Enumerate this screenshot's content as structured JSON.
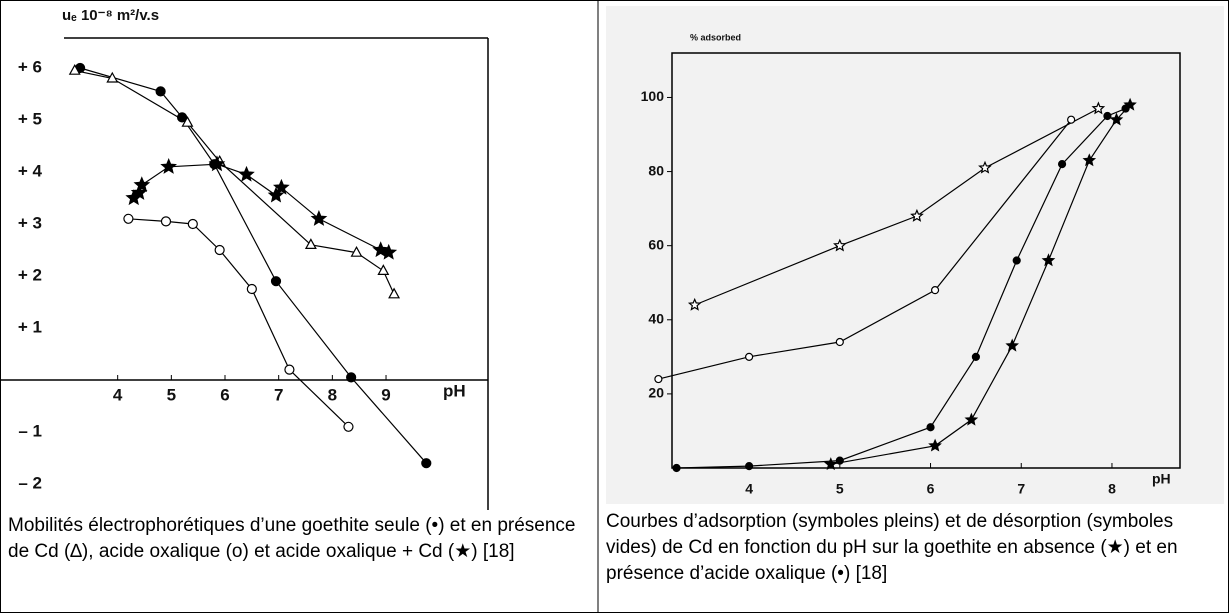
{
  "chart_data": [
    {
      "type": "line",
      "ylabel": "uₑ 10⁻⁸ m²/v.s",
      "xlabel": "pH",
      "xlim": [
        3,
        10.9
      ],
      "ylim": [
        -2.5,
        6.5
      ],
      "xticks": [
        4,
        5,
        6,
        7,
        8,
        9
      ],
      "yticks": [
        {
          "value": 6,
          "label": "+ 6"
        },
        {
          "value": 5,
          "label": "+ 5"
        },
        {
          "value": 4,
          "label": "+ 4"
        },
        {
          "value": 3,
          "label": "+ 3"
        },
        {
          "value": 2,
          "label": "+ 2"
        },
        {
          "value": 1,
          "label": "+ 1"
        },
        {
          "value": -1,
          "label": "– 1"
        },
        {
          "value": -2,
          "label": "– 2"
        }
      ],
      "series": [
        {
          "marker": "filled-circle",
          "color": "#000",
          "x": [
            3.3,
            4.8,
            5.2,
            5.8,
            6.95,
            8.35,
            9.75
          ],
          "values": [
            6.0,
            5.55,
            5.05,
            4.15,
            1.9,
            0.05,
            -1.6
          ]
        },
        {
          "marker": "open-triangle",
          "color": "#000",
          "x": [
            3.2,
            3.9,
            5.3,
            5.9,
            7.6,
            8.45,
            8.95,
            9.15
          ],
          "values": [
            5.95,
            5.8,
            4.95,
            4.2,
            2.6,
            2.45,
            2.1,
            1.65
          ]
        },
        {
          "marker": "open-circle",
          "color": "#000",
          "x": [
            4.2,
            4.9,
            5.4,
            5.9,
            6.5,
            7.2,
            8.3
          ],
          "values": [
            3.1,
            3.05,
            3.0,
            2.5,
            1.75,
            0.2,
            -0.9
          ]
        },
        {
          "marker": "filled-star",
          "color": "#000",
          "x": [
            4.3,
            4.4,
            4.45,
            4.95,
            5.85,
            6.4,
            6.95,
            7.05,
            7.75,
            8.9,
            9.05
          ],
          "values": [
            3.5,
            3.6,
            3.75,
            4.1,
            4.15,
            3.95,
            3.55,
            3.7,
            3.1,
            2.5,
            2.45
          ]
        }
      ]
    },
    {
      "type": "line",
      "ylabel": "% adsorbed",
      "xlabel": "pH",
      "xlim": [
        3.15,
        8.75
      ],
      "ylim": [
        0,
        112
      ],
      "xticks": [
        4,
        5,
        6,
        7,
        8
      ],
      "yticks": [
        20,
        40,
        60,
        80,
        100
      ],
      "series": [
        {
          "marker": "open-star",
          "color": "#000",
          "x": [
            3.4,
            5.0,
            5.85,
            6.6,
            7.85
          ],
          "values": [
            44,
            60,
            68,
            81,
            97
          ]
        },
        {
          "marker": "open-circle",
          "color": "#000",
          "x": [
            3.0,
            4.0,
            5.0,
            6.05,
            7.55
          ],
          "values": [
            24,
            30,
            34,
            48,
            94
          ]
        },
        {
          "marker": "filled-circle",
          "color": "#000",
          "x": [
            3.2,
            4.0,
            5.0,
            6.0,
            6.5,
            6.95,
            7.45,
            7.95,
            8.15
          ],
          "values": [
            0,
            0.5,
            2,
            11,
            30,
            56,
            82,
            95,
            97
          ]
        },
        {
          "marker": "filled-star",
          "color": "#000",
          "x": [
            4.9,
            6.05,
            6.45,
            6.9,
            7.3,
            7.75,
            8.05,
            8.2
          ],
          "values": [
            1,
            6,
            13,
            33,
            56,
            83,
            94,
            98
          ]
        }
      ]
    }
  ],
  "captions": [
    "Mobilités électrophorétiques d’une goethite seule (•) et en présence de Cd (∆), acide oxalique (o) et acide oxalique + Cd (★) [18]",
    "Courbes d’adsorption (symboles pleins) et de désorption (symboles vides) de Cd en fonction du pH sur la goethite en absence (★) et en présence d’acide oxalique (•) [18]"
  ]
}
